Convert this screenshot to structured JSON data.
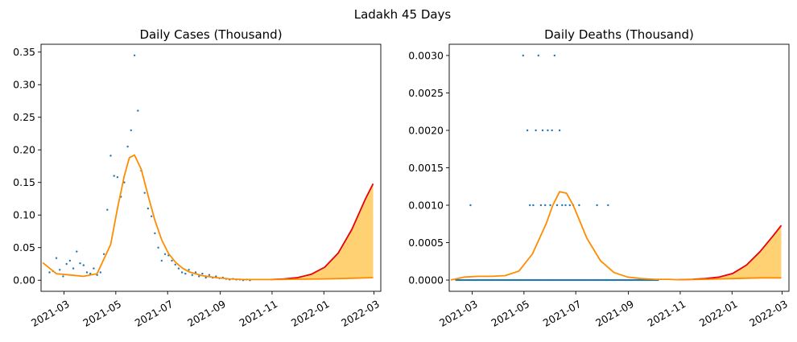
{
  "figure": {
    "suptitle": "Ladakh 45 Days"
  },
  "colors": {
    "observed": "#1f77b4",
    "fit": "#ff8c00",
    "forecast": "#e8000b",
    "band": "#ffc95a"
  },
  "chart_data": [
    {
      "type": "scatter",
      "title": "Daily Cases (Thousand)",
      "xlabel": "",
      "ylabel": "",
      "x_axis": "date",
      "xlim": [
        "2021-02-02",
        "2022-03-09"
      ],
      "ylim": [
        -0.017,
        0.362
      ],
      "x_ticks": [
        "2021-03",
        "2021-05",
        "2021-07",
        "2021-09",
        "2021-11",
        "2022-01",
        "2022-03"
      ],
      "y_ticks": [
        0.0,
        0.05,
        0.1,
        0.15,
        0.2,
        0.25,
        0.3,
        0.35
      ],
      "y_tick_labels": [
        "0.00",
        "0.05",
        "0.10",
        "0.15",
        "0.20",
        "0.25",
        "0.30",
        "0.35"
      ],
      "grid": false,
      "series": [
        {
          "role": "observed",
          "style": "points",
          "x": [
            "2021-02-12",
            "2021-02-16",
            "2021-02-20",
            "2021-02-24",
            "2021-02-28",
            "2021-03-04",
            "2021-03-08",
            "2021-03-12",
            "2021-03-16",
            "2021-03-20",
            "2021-03-24",
            "2021-03-28",
            "2021-04-01",
            "2021-04-05",
            "2021-04-09",
            "2021-04-13",
            "2021-04-17",
            "2021-04-21",
            "2021-04-25",
            "2021-04-29",
            "2021-05-03",
            "2021-05-07",
            "2021-05-11",
            "2021-05-15",
            "2021-05-19",
            "2021-05-23",
            "2021-05-27",
            "2021-05-31",
            "2021-06-04",
            "2021-06-08",
            "2021-06-12",
            "2021-06-16",
            "2021-06-20",
            "2021-06-24",
            "2021-06-28",
            "2021-07-02",
            "2021-07-06",
            "2021-07-10",
            "2021-07-14",
            "2021-07-18",
            "2021-07-22",
            "2021-07-26",
            "2021-07-30",
            "2021-08-03",
            "2021-08-07",
            "2021-08-11",
            "2021-08-15",
            "2021-08-19",
            "2021-08-23",
            "2021-08-27",
            "2021-08-31",
            "2021-09-04",
            "2021-09-08",
            "2021-09-12",
            "2021-09-16",
            "2021-09-20",
            "2021-09-24",
            "2021-09-28",
            "2021-10-02",
            "2021-10-06"
          ],
          "values": [
            0.012,
            0.014,
            0.034,
            0.016,
            0.006,
            0.025,
            0.03,
            0.018,
            0.044,
            0.026,
            0.023,
            0.012,
            0.01,
            0.018,
            0.008,
            0.012,
            0.04,
            0.108,
            0.191,
            0.16,
            0.158,
            0.128,
            0.15,
            0.205,
            0.23,
            0.345,
            0.26,
            0.168,
            0.134,
            0.11,
            0.098,
            0.072,
            0.05,
            0.03,
            0.04,
            0.038,
            0.03,
            0.024,
            0.018,
            0.012,
            0.01,
            0.016,
            0.008,
            0.012,
            0.006,
            0.01,
            0.004,
            0.008,
            0.004,
            0.006,
            0.003,
            0.004,
            0.002,
            0.001,
            0.002,
            0.001,
            0.001,
            0.0,
            0.001,
            0.0
          ]
        },
        {
          "role": "fit",
          "style": "line",
          "x": [
            "2021-02-04",
            "2021-02-20",
            "2021-03-08",
            "2021-03-24",
            "2021-04-09",
            "2021-04-25",
            "2021-05-03",
            "2021-05-11",
            "2021-05-17",
            "2021-05-23",
            "2021-05-31",
            "2021-06-08",
            "2021-06-16",
            "2021-06-24",
            "2021-07-02",
            "2021-07-10",
            "2021-07-18",
            "2021-07-26",
            "2021-08-11",
            "2021-08-27",
            "2021-09-12",
            "2021-09-28",
            "2021-10-14",
            "2021-10-30"
          ],
          "values": [
            0.027,
            0.01,
            0.008,
            0.006,
            0.01,
            0.055,
            0.11,
            0.16,
            0.188,
            0.192,
            0.17,
            0.13,
            0.092,
            0.062,
            0.041,
            0.028,
            0.019,
            0.013,
            0.007,
            0.004,
            0.002,
            0.001,
            0.001,
            0.001
          ]
        },
        {
          "role": "forecast",
          "style": "line",
          "x": [
            "2021-10-30",
            "2021-11-15",
            "2021-12-01",
            "2021-12-17",
            "2022-01-02",
            "2022-01-18",
            "2022-02-03",
            "2022-02-19",
            "2022-02-28"
          ],
          "values": [
            0.001,
            0.002,
            0.004,
            0.009,
            0.02,
            0.042,
            0.078,
            0.125,
            0.148
          ]
        },
        {
          "role": "forecast-lower",
          "style": "line",
          "x": [
            "2021-10-30",
            "2021-12-01",
            "2022-01-02",
            "2022-02-03",
            "2022-02-28"
          ],
          "values": [
            0.001,
            0.0015,
            0.002,
            0.003,
            0.004
          ]
        }
      ]
    },
    {
      "type": "scatter",
      "title": "Daily Deaths (Thousand)",
      "xlabel": "",
      "ylabel": "",
      "x_axis": "date",
      "xlim": [
        "2021-02-02",
        "2022-03-09"
      ],
      "ylim": [
        -0.00015,
        0.00315
      ],
      "x_ticks": [
        "2021-03",
        "2021-05",
        "2021-07",
        "2021-09",
        "2021-11",
        "2022-01",
        "2022-03"
      ],
      "y_ticks": [
        0.0,
        0.0005,
        0.001,
        0.0015,
        0.002,
        0.0025,
        0.003
      ],
      "y_tick_labels": [
        "0.0000",
        "0.0005",
        "0.0010",
        "0.0015",
        "0.0020",
        "0.0025",
        "0.0030"
      ],
      "grid": false,
      "series": [
        {
          "role": "observed",
          "style": "points",
          "x": [
            "2021-02-27",
            "2021-04-30",
            "2021-05-05",
            "2021-05-08",
            "2021-05-12",
            "2021-05-15",
            "2021-05-18",
            "2021-05-21",
            "2021-05-23",
            "2021-05-26",
            "2021-05-29",
            "2021-06-01",
            "2021-06-03",
            "2021-06-06",
            "2021-06-09",
            "2021-06-12",
            "2021-06-15",
            "2021-06-19",
            "2021-06-24",
            "2021-06-28",
            "2021-07-05",
            "2021-07-26",
            "2021-08-08"
          ],
          "values": [
            0.001,
            0.003,
            0.002,
            0.001,
            0.001,
            0.002,
            0.003,
            0.001,
            0.002,
            0.001,
            0.002,
            0.001,
            0.002,
            0.003,
            0.001,
            0.002,
            0.001,
            0.001,
            0.001,
            0.001,
            0.001,
            0.001,
            0.001
          ],
          "zero_baseline": [
            "2021-02-10",
            "2021-10-06"
          ]
        },
        {
          "role": "fit",
          "style": "line",
          "x": [
            "2021-02-04",
            "2021-02-20",
            "2021-03-08",
            "2021-03-24",
            "2021-04-09",
            "2021-04-25",
            "2021-05-11",
            "2021-05-27",
            "2021-06-04",
            "2021-06-12",
            "2021-06-20",
            "2021-06-28",
            "2021-07-06",
            "2021-07-14",
            "2021-07-30",
            "2021-08-15",
            "2021-08-31",
            "2021-09-16",
            "2021-10-02",
            "2021-10-18",
            "2021-10-30"
          ],
          "values": [
            0.0,
            4e-05,
            5e-05,
            5e-05,
            6e-05,
            0.00012,
            0.00035,
            0.00075,
            0.001,
            0.00118,
            0.00116,
            0.001,
            0.00078,
            0.00056,
            0.00026,
            0.0001,
            4e-05,
            2e-05,
            1e-05,
            1e-05,
            5e-06
          ]
        },
        {
          "role": "forecast",
          "style": "line",
          "x": [
            "2021-10-30",
            "2021-11-15",
            "2021-12-01",
            "2021-12-17",
            "2022-01-02",
            "2022-01-18",
            "2022-02-03",
            "2022-02-19",
            "2022-02-28"
          ],
          "values": [
            5e-06,
            1e-05,
            2e-05,
            4e-05,
            9e-05,
            0.0002,
            0.00038,
            0.0006,
            0.00073
          ]
        },
        {
          "role": "forecast-lower",
          "style": "line",
          "x": [
            "2021-10-30",
            "2021-12-01",
            "2022-01-02",
            "2022-02-03",
            "2022-02-28"
          ],
          "values": [
            5e-06,
            1e-05,
            2e-05,
            3e-05,
            3e-05
          ]
        }
      ]
    }
  ]
}
